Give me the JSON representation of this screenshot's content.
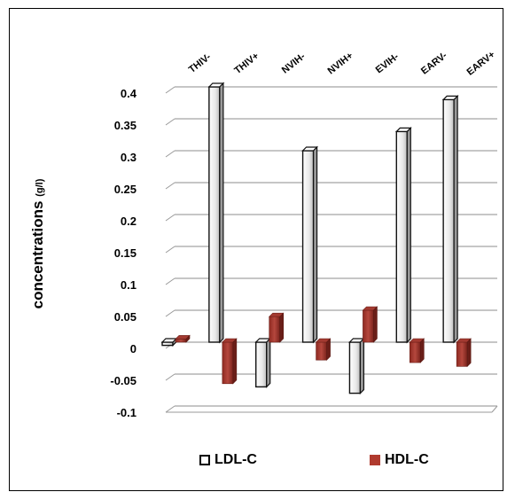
{
  "chart_data": {
    "type": "bar",
    "categories": [
      "THIV-",
      "THIV+",
      "NVIH-",
      "NVIH+",
      "EVIH-",
      "EARV-",
      "EARV+"
    ],
    "series": [
      {
        "name": "LDL-C",
        "values": [
          -0.005,
          0.4,
          -0.07,
          0.3,
          -0.08,
          0.33,
          0.38
        ]
      },
      {
        "name": "HDL-C",
        "values": [
          0.005,
          -0.065,
          0.04,
          -0.028,
          0.05,
          -0.032,
          -0.038
        ]
      }
    ],
    "ylabel": "concentrations",
    "ylabel_unit": "(g/l)",
    "ylim": [
      -0.1,
      0.4
    ],
    "yticks": [
      "-0.1",
      "-0.05",
      "0",
      "0.05",
      "0.1",
      "0.15",
      "0.2",
      "0.25",
      "0.3",
      "0.35",
      "0.4"
    ],
    "grid": true,
    "legend_position": "bottom",
    "colors": {
      "LDL-C": "#f4f4f4",
      "HDL-C": "#b03a2e"
    }
  }
}
